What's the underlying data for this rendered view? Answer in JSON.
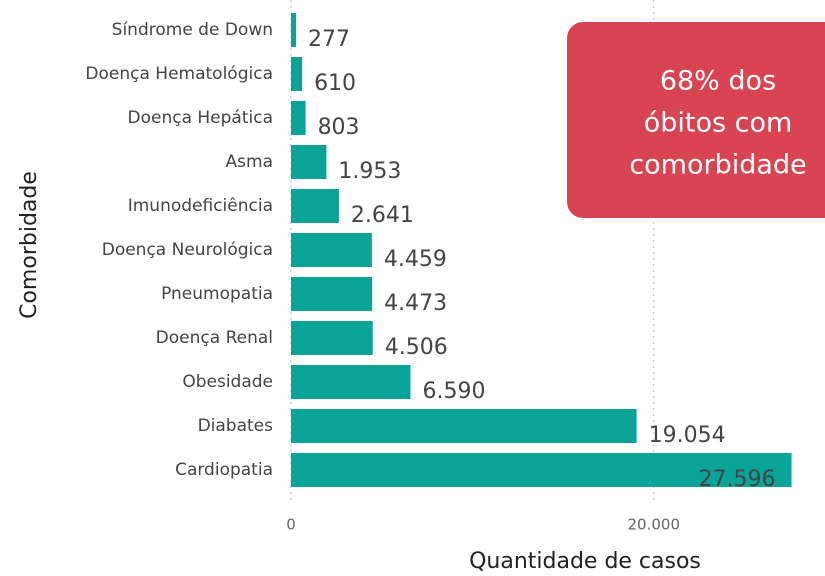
{
  "chart_data": {
    "type": "hbar",
    "categories": [
      "Síndrome de Down",
      "Doença Hematológica",
      "Doença Hepática",
      "Asma",
      "Imunodeficiência",
      "Doença Neurológica",
      "Pneumopatia",
      "Doença Renal",
      "Obesidade",
      "Diabates",
      "Cardiopatia"
    ],
    "values": [
      277,
      610,
      803,
      1953,
      2641,
      4459,
      4473,
      4506,
      6590,
      19054,
      27596
    ],
    "value_labels": [
      "277",
      "610",
      "803",
      "1.953",
      "2.641",
      "4.459",
      "4.473",
      "4.506",
      "6.590",
      "19.054",
      "27.596"
    ],
    "color": "#0aa398",
    "xlim": [
      0,
      29000
    ],
    "xticks": [
      0,
      {
        "value": 20000,
        "label": "20.000"
      }
    ],
    "grid": true,
    "xlabel": "Quantidade de casos",
    "ylabel": "Comorbidade",
    "annotation": [
      "68% dos",
      "óbitos com",
      "comorbidade"
    ]
  }
}
